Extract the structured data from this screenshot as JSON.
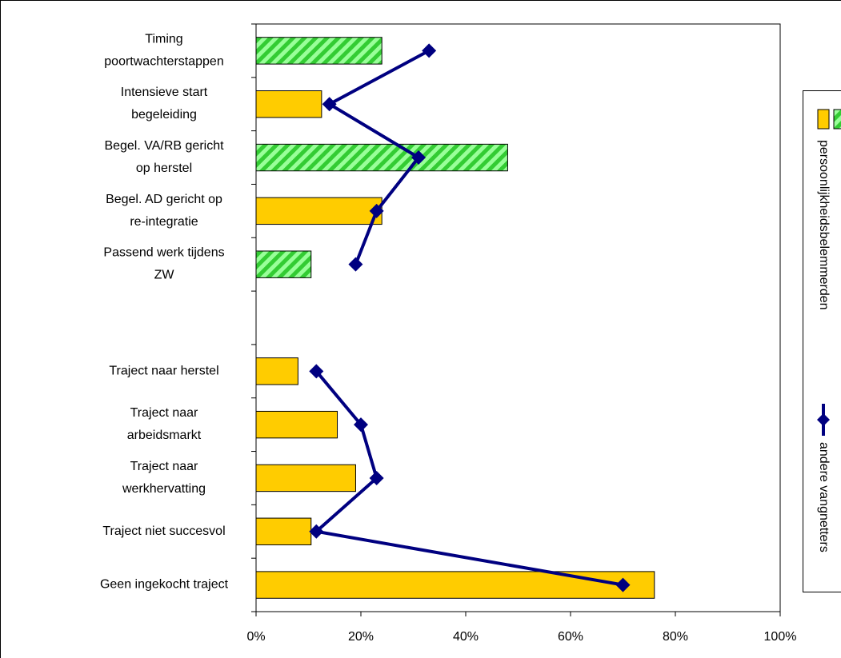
{
  "chart_data": {
    "type": "bar-line",
    "orientation": "horizontal",
    "categories": [
      "Timing\npoortwachterstappen",
      "Intensieve start\nbegeleiding",
      "Begel. VA/RB gericht\nop herstel",
      "Begel. AD gericht op\nre-integratie",
      "Passend werk tijdens\nZW",
      null,
      "Traject naar herstel",
      "Traject naar\narbeidsmarkt",
      "Traject naar\nwerkhervatting",
      "Traject niet succesvol",
      "Geen ingekocht traject"
    ],
    "series": [
      {
        "name": "persoonlijkheidsbelemmerden",
        "type": "bar",
        "color": "#ffcc00",
        "hatch_color": "#33cc33",
        "fills": [
          "hatched",
          "solid",
          "hatched",
          "solid",
          "hatched",
          null,
          "solid",
          "solid",
          "solid",
          "solid",
          "solid"
        ],
        "values": [
          24,
          12.5,
          48,
          24,
          10.5,
          null,
          8,
          15.5,
          19,
          10.5,
          76
        ]
      },
      {
        "name": "andere vangnetters",
        "type": "line",
        "color": "#000080",
        "values": [
          33,
          14,
          31,
          23,
          19,
          null,
          11.5,
          20,
          23,
          11.5,
          70
        ]
      }
    ],
    "xlim": [
      0,
      100
    ],
    "xticks": [
      {
        "value": 0,
        "label": "0%"
      },
      {
        "value": 20,
        "label": "20%"
      },
      {
        "value": 40,
        "label": "40%"
      },
      {
        "value": 60,
        "label": "60%"
      },
      {
        "value": 80,
        "label": "80%"
      },
      {
        "value": 100,
        "label": "100%"
      }
    ],
    "legend": "right"
  }
}
